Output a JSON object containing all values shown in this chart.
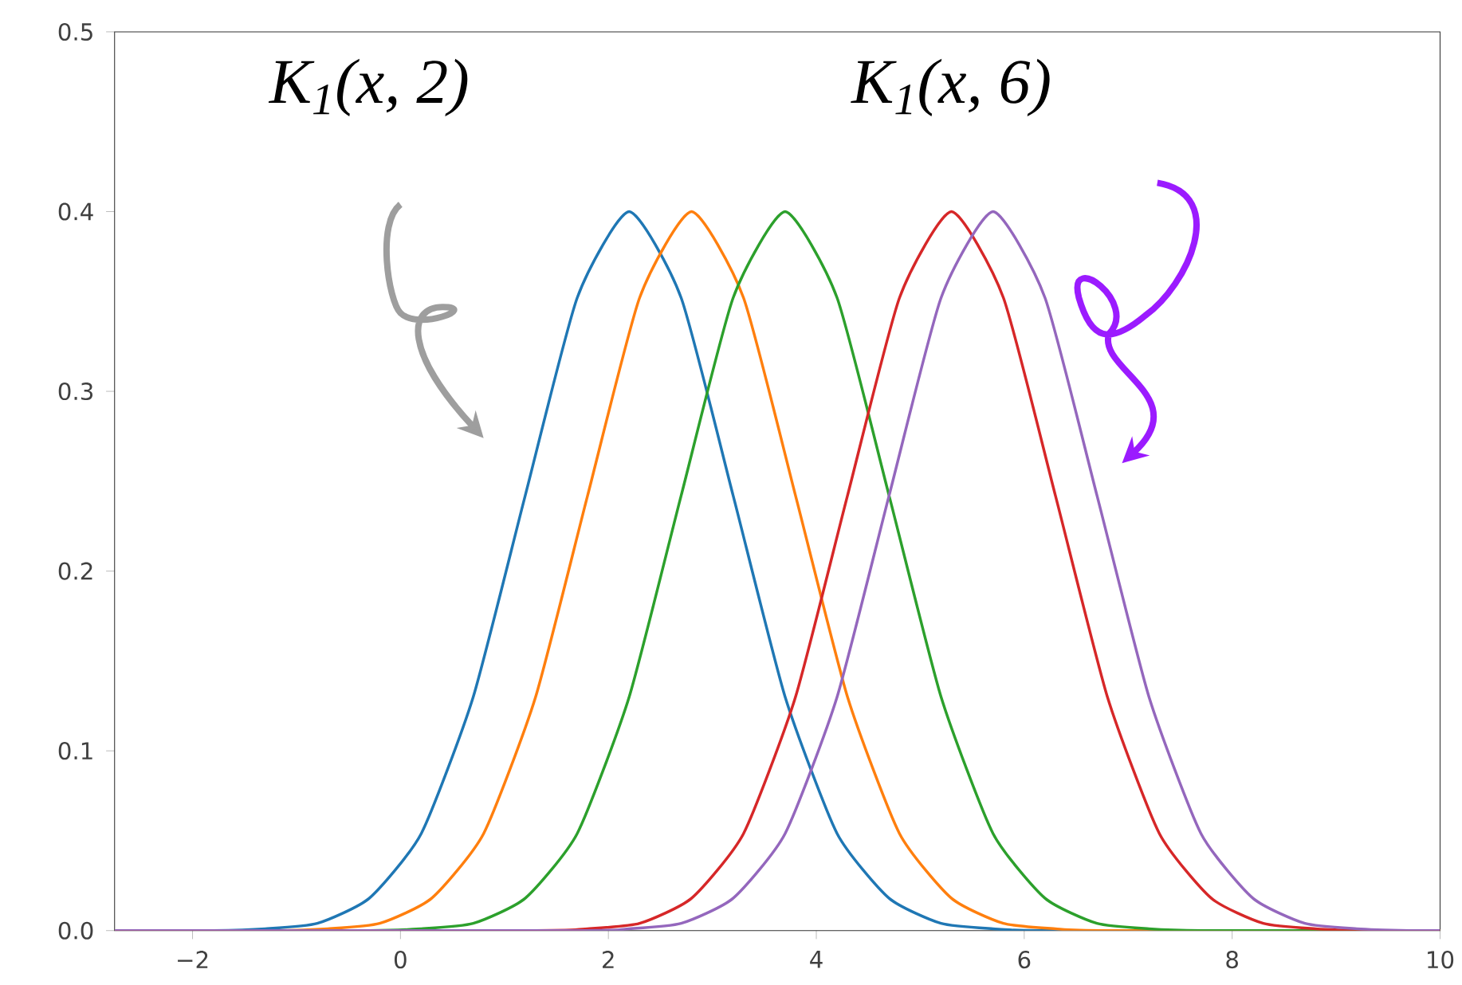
{
  "chart_data": {
    "type": "line",
    "xlim": [
      -2.75,
      10
    ],
    "ylim": [
      0,
      0.5
    ],
    "xticks": [
      {
        "value": -2,
        "label": "−2"
      },
      0,
      2,
      4,
      6,
      8,
      10
    ],
    "yticks": [
      {
        "value": 0,
        "label": "0.0"
      },
      0.1,
      0.2,
      0.3,
      0.4,
      {
        "value": 0.5,
        "label": "0.5"
      }
    ],
    "grid": false,
    "marker": "none",
    "line_style": "solid",
    "annotations": [
      "K$_{1}$(x, 2)",
      "K$_{1}$(x, 6)"
    ],
    "series": [
      {
        "color": "#1f77b4",
        "x": [
          -2.75,
          -1.8,
          -1.3,
          -0.8,
          -0.3,
          0.2,
          0.7,
          1.2,
          1.7,
          2.2,
          2.7,
          3.2,
          3.7,
          4.2,
          4.7,
          5.2,
          5.7,
          6.2,
          10
        ],
        "values": [
          0,
          0,
          0.001,
          0.004,
          0.018,
          0.054,
          0.13,
          0.242,
          0.352,
          0.4,
          0.352,
          0.242,
          0.13,
          0.054,
          0.018,
          0.004,
          0.001,
          0,
          0
        ]
      },
      {
        "color": "#ff7f0e",
        "x": [
          -2.75,
          -1.2,
          -0.7,
          -0.2,
          0.3,
          0.8,
          1.3,
          1.8,
          2.3,
          2.8,
          3.3,
          3.8,
          4.3,
          4.8,
          5.3,
          5.8,
          6.3,
          6.8,
          10
        ],
        "values": [
          0,
          0,
          0.001,
          0.004,
          0.018,
          0.054,
          0.13,
          0.242,
          0.352,
          0.4,
          0.352,
          0.242,
          0.13,
          0.054,
          0.018,
          0.004,
          0.001,
          0,
          0
        ]
      },
      {
        "color": "#2ca02c",
        "x": [
          -2.75,
          -0.3,
          0.2,
          0.7,
          1.2,
          1.7,
          2.2,
          2.7,
          3.2,
          3.7,
          4.2,
          4.7,
          5.2,
          5.7,
          6.2,
          6.7,
          7.2,
          7.7,
          10
        ],
        "values": [
          0,
          0,
          0.001,
          0.004,
          0.018,
          0.054,
          0.13,
          0.242,
          0.352,
          0.4,
          0.352,
          0.242,
          0.13,
          0.054,
          0.018,
          0.004,
          0.001,
          0,
          0
        ]
      },
      {
        "color": "#d62728",
        "x": [
          -2.75,
          1.3,
          1.8,
          2.3,
          2.8,
          3.3,
          3.8,
          4.3,
          4.8,
          5.3,
          5.8,
          6.3,
          6.8,
          7.3,
          7.8,
          8.3,
          8.8,
          9.3,
          10
        ],
        "values": [
          0,
          0,
          0.001,
          0.004,
          0.018,
          0.054,
          0.13,
          0.242,
          0.352,
          0.4,
          0.352,
          0.242,
          0.13,
          0.054,
          0.018,
          0.004,
          0.001,
          0,
          0
        ]
      },
      {
        "color": "#9467bd",
        "x": [
          -2.75,
          1.7,
          2.2,
          2.7,
          3.2,
          3.7,
          4.2,
          4.7,
          5.2,
          5.7,
          6.2,
          6.7,
          7.2,
          7.7,
          8.2,
          8.7,
          9.2,
          9.7,
          10
        ],
        "values": [
          0,
          0,
          0.001,
          0.004,
          0.018,
          0.054,
          0.13,
          0.242,
          0.352,
          0.4,
          0.352,
          0.242,
          0.13,
          0.054,
          0.018,
          0.004,
          0.001,
          0,
          0
        ]
      }
    ]
  }
}
